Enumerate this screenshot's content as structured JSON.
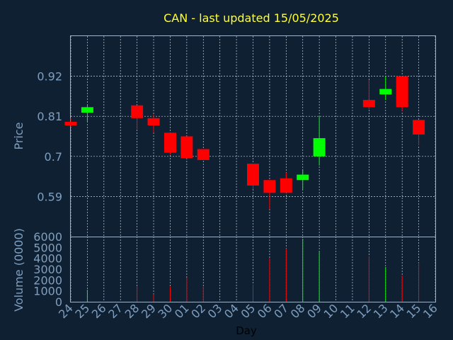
{
  "chart_data": {
    "type": "candlestick",
    "title": "CAN - last updated 15/05/2025",
    "ylabel": "Price",
    "volume_ylabel": "Volume (0000)",
    "xlabel": "Day",
    "price_ylim": [
      0.48,
      1.03
    ],
    "price_yticks": [
      0.59,
      0.7,
      0.81,
      0.92
    ],
    "volume_ylim": [
      0,
      6000
    ],
    "volume_yticks": [
      0,
      1000,
      2000,
      3000,
      4000,
      5000,
      6000
    ],
    "grid": true,
    "up_color": "#00ff00",
    "down_color": "#ff0000",
    "xticks": [
      "24",
      "25",
      "26",
      "27",
      "28",
      "29",
      "30",
      "01",
      "02",
      "03",
      "04",
      "05",
      "06",
      "07",
      "08",
      "09",
      "10",
      "11",
      "12",
      "13",
      "14",
      "15",
      "16"
    ],
    "candles": [
      {
        "day": "24",
        "open": 0.795,
        "high": 0.805,
        "low": 0.78,
        "close": 0.785,
        "volume": 0
      },
      {
        "day": "25",
        "open": 0.82,
        "high": 0.84,
        "low": 0.795,
        "close": 0.835,
        "volume": 1100
      },
      {
        "day": "28",
        "open": 0.84,
        "high": 0.84,
        "low": 0.775,
        "close": 0.805,
        "volume": 1400
      },
      {
        "day": "29",
        "open": 0.805,
        "high": 0.815,
        "low": 0.765,
        "close": 0.785,
        "volume": 700
      },
      {
        "day": "30",
        "open": 0.765,
        "high": 0.765,
        "low": 0.705,
        "close": 0.71,
        "volume": 1400
      },
      {
        "day": "01",
        "open": 0.755,
        "high": 0.755,
        "low": 0.695,
        "close": 0.695,
        "volume": 2200
      },
      {
        "day": "02",
        "open": 0.72,
        "high": 0.72,
        "low": 0.69,
        "close": 0.69,
        "volume": 1400
      },
      {
        "day": "05",
        "open": 0.68,
        "high": 0.68,
        "low": 0.61,
        "close": 0.62,
        "volume": 1600
      },
      {
        "day": "06",
        "open": 0.635,
        "high": 0.635,
        "low": 0.555,
        "close": 0.6,
        "volume": 4000
      },
      {
        "day": "07",
        "open": 0.64,
        "high": 0.655,
        "low": 0.6,
        "close": 0.6,
        "volume": 4900
      },
      {
        "day": "08",
        "open": 0.635,
        "high": 0.665,
        "low": 0.61,
        "close": 0.65,
        "volume": 5800
      },
      {
        "day": "09",
        "open": 0.7,
        "high": 0.81,
        "low": 0.675,
        "close": 0.75,
        "volume": 4600
      },
      {
        "day": "12",
        "open": 0.855,
        "high": 0.91,
        "low": 0.83,
        "close": 0.835,
        "volume": 4200
      },
      {
        "day": "13",
        "open": 0.87,
        "high": 0.92,
        "low": 0.855,
        "close": 0.885,
        "volume": 3200
      },
      {
        "day": "14",
        "open": 0.92,
        "high": 0.92,
        "low": 0.825,
        "close": 0.835,
        "volume": 2400
      },
      {
        "day": "15",
        "open": 0.8,
        "high": 0.8,
        "low": 0.73,
        "close": 0.76,
        "volume": 3600
      }
    ]
  }
}
